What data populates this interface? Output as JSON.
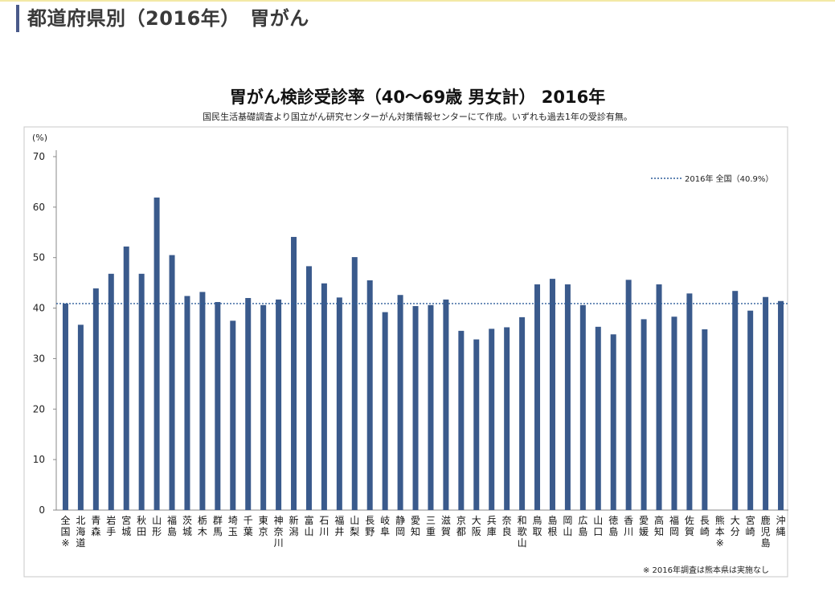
{
  "page": {
    "title": "都道府県別（2016年）　胃がん",
    "footnote": "※ 2016年調査は熊本県は実施なし"
  },
  "colors": {
    "bar": "#3a5a8c",
    "reference_line": "#2f5e9a",
    "axis": "#888888",
    "accent": "#4a5a8a"
  },
  "chart_data": {
    "type": "bar",
    "title": "胃がん検診受診率（40～69歳 男女計） 2016年",
    "subtitle": "国民生活基礎調査より国立がん研究センターがん対策情報センターにて作成。いずれも過去1年の受診有無。",
    "ylabel": "(%)",
    "ylim": [
      0,
      70
    ],
    "yticks": [
      0,
      10,
      20,
      30,
      40,
      50,
      60,
      70
    ],
    "grid": false,
    "legend": "top-right",
    "categories": [
      "全国※",
      "北海道",
      "青森",
      "岩手",
      "宮城",
      "秋田",
      "山形",
      "福島",
      "茨城",
      "栃木",
      "群馬",
      "埼玉",
      "千葉",
      "東京",
      "神奈川",
      "新潟",
      "富山",
      "石川",
      "福井",
      "山梨",
      "長野",
      "岐阜",
      "静岡",
      "愛知",
      "三重",
      "滋賀",
      "京都",
      "大阪",
      "兵庫",
      "奈良",
      "和歌山",
      "鳥取",
      "島根",
      "岡山",
      "広島",
      "山口",
      "徳島",
      "香川",
      "愛媛",
      "高知",
      "福岡",
      "佐賀",
      "長崎",
      "熊本※",
      "大分",
      "宮崎",
      "鹿児島",
      "沖縄"
    ],
    "values": [
      40.9,
      36.7,
      43.9,
      46.8,
      52.2,
      46.8,
      61.9,
      50.5,
      42.4,
      43.2,
      41.2,
      37.5,
      42.0,
      40.6,
      41.7,
      54.1,
      48.3,
      44.9,
      42.1,
      50.1,
      45.5,
      39.2,
      42.6,
      40.4,
      40.6,
      41.7,
      35.5,
      33.8,
      35.9,
      36.2,
      38.2,
      44.7,
      45.8,
      44.7,
      40.6,
      36.3,
      34.8,
      45.6,
      37.8,
      44.7,
      38.3,
      42.9,
      35.8,
      null,
      43.4,
      39.5,
      42.2,
      41.4
    ],
    "reference_line": {
      "label": "2016年 全国（40.9%）",
      "value": 40.9
    }
  }
}
